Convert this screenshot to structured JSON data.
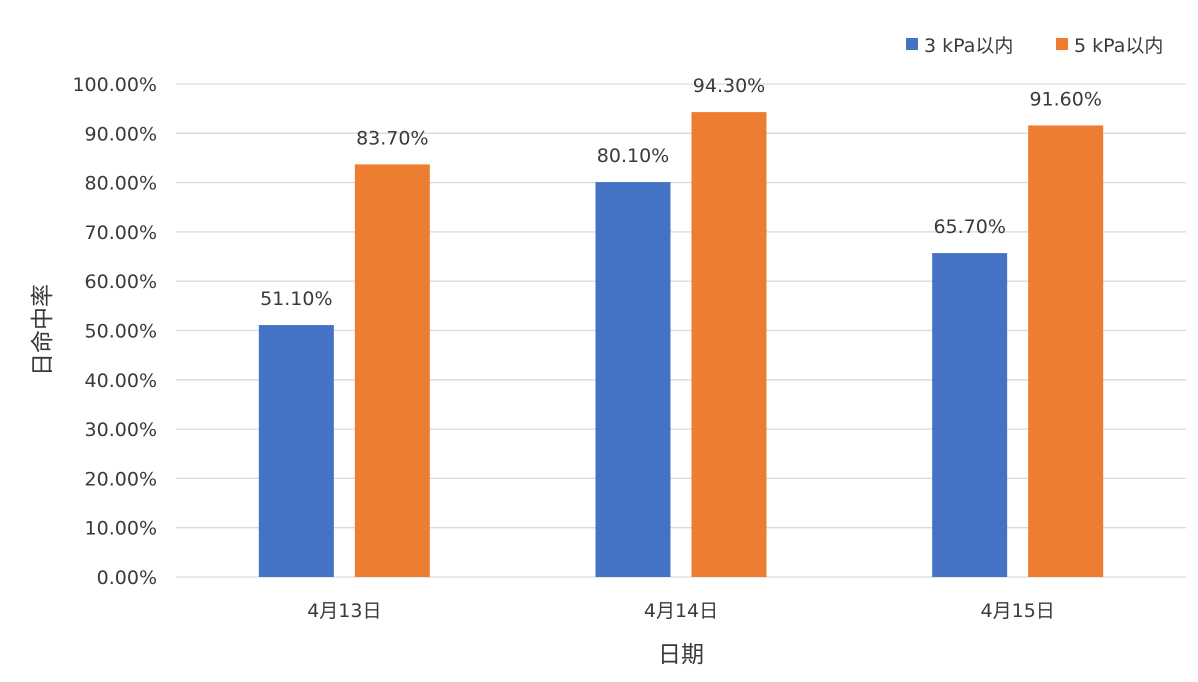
{
  "chart_data": {
    "type": "bar",
    "categories": [
      "4月13日",
      "4月14日",
      "4月15日"
    ],
    "series": [
      {
        "name": "3 kPa以内",
        "values": [
          51.1,
          80.1,
          65.7
        ],
        "labels": [
          "51.10%",
          "80.10%",
          "65.70%"
        ],
        "color": "#4472C4"
      },
      {
        "name": "5 kPa以内",
        "values": [
          83.7,
          94.3,
          91.6
        ],
        "labels": [
          "83.70%",
          "94.30%",
          "91.60%"
        ],
        "color": "#ED7D31"
      }
    ],
    "xlabel": "日期",
    "ylabel": "日命中率",
    "ylim": [
      0,
      100
    ],
    "yticks": [
      0,
      10,
      20,
      30,
      40,
      50,
      60,
      70,
      80,
      90,
      100
    ],
    "ytick_labels": [
      "0.00%",
      "10.00%",
      "20.00%",
      "30.00%",
      "40.00%",
      "50.00%",
      "60.00%",
      "70.00%",
      "80.00%",
      "90.00%",
      "100.00%"
    ],
    "grid": true,
    "legend": "top-right"
  }
}
